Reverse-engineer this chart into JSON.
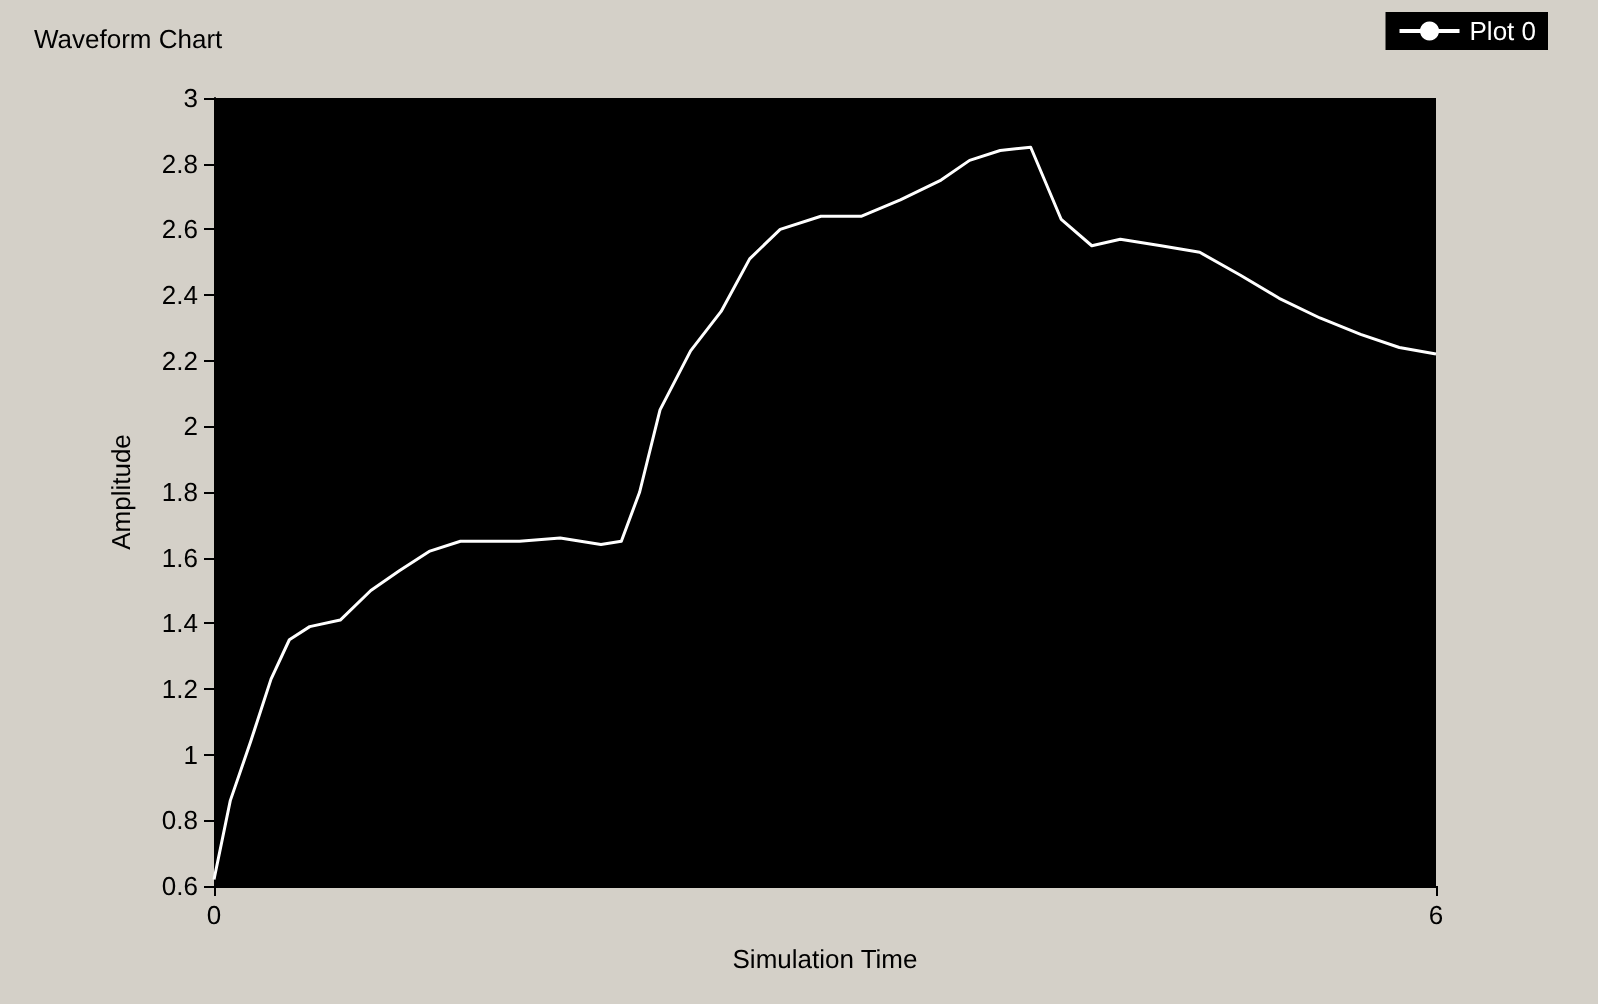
{
  "chart_data": {
    "type": "line",
    "title": "Waveform Chart",
    "xlabel": "Simulation Time",
    "ylabel": "Amplitude",
    "series": [
      {
        "name": "Plot 0",
        "color": "#ffffff",
        "x": [
          0,
          0.08,
          0.18,
          0.28,
          0.37,
          0.47,
          0.62,
          0.77,
          0.91,
          1.06,
          1.21,
          1.5,
          1.7,
          1.9,
          2.0,
          2.09,
          2.19,
          2.34,
          2.49,
          2.63,
          2.78,
          2.98,
          3.18,
          3.37,
          3.57,
          3.71,
          3.86,
          4.01,
          4.16,
          4.31,
          4.45,
          4.65,
          4.84,
          5.04,
          5.23,
          5.43,
          5.63,
          5.82,
          6
        ],
        "values": [
          0.62,
          0.86,
          1.04,
          1.23,
          1.35,
          1.39,
          1.41,
          1.5,
          1.56,
          1.62,
          1.65,
          1.65,
          1.66,
          1.64,
          1.65,
          1.8,
          2.05,
          2.23,
          2.35,
          2.51,
          2.6,
          2.64,
          2.64,
          2.69,
          2.75,
          2.81,
          2.84,
          2.85,
          2.63,
          2.55,
          2.57,
          2.55,
          2.53,
          2.46,
          2.39,
          2.33,
          2.28,
          2.24,
          2.22
        ]
      }
    ],
    "xlim": [
      0,
      6
    ],
    "xticks": [
      0,
      6
    ],
    "ylim": [
      0.6,
      3
    ],
    "yticks": [
      0.6,
      0.8,
      1,
      1.2,
      1.4,
      1.6,
      1.8,
      2,
      2.2,
      2.4,
      2.6,
      2.8,
      3
    ],
    "grid": false,
    "legend": "top right",
    "marker": "none",
    "line_style": "solid"
  }
}
